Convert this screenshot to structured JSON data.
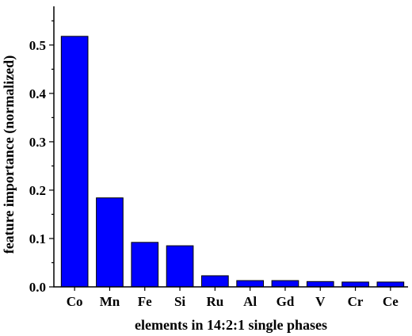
{
  "chart_data": {
    "type": "bar",
    "title": "",
    "xlabel": "elements in 14:2:1 single phases",
    "ylabel": "feature importance (normalized)",
    "categories": [
      "Co",
      "Mn",
      "Fe",
      "Si",
      "Ru",
      "Al",
      "Gd",
      "V",
      "Cr",
      "Ce"
    ],
    "values": [
      0.518,
      0.184,
      0.092,
      0.085,
      0.023,
      0.013,
      0.013,
      0.011,
      0.01,
      0.01
    ],
    "ylim": [
      0,
      0.58
    ],
    "yticks": [
      "0.0",
      "0.1",
      "0.2",
      "0.3",
      "0.4",
      "0.5"
    ],
    "bar_color": "#0000ff",
    "grid": false,
    "legend": "none"
  }
}
